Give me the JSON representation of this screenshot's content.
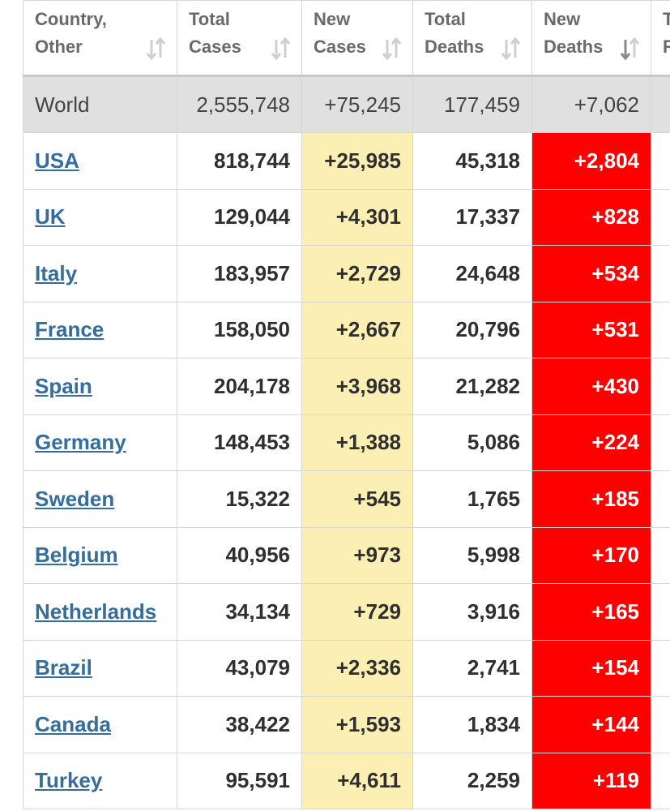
{
  "table": {
    "headers": [
      [
        "Country,",
        "Other"
      ],
      [
        "Total",
        "Cases"
      ],
      [
        "New",
        "Cases"
      ],
      [
        "Total",
        "Deaths"
      ],
      [
        "New",
        "Deaths"
      ],
      [
        "T",
        "R"
      ]
    ],
    "world": [
      "World",
      "2,555,748",
      "+75,245",
      "177,459",
      "+7,062"
    ],
    "rows": [
      [
        "USA",
        "818,744",
        "+25,985",
        "45,318",
        "+2,804"
      ],
      [
        "UK",
        "129,044",
        "+4,301",
        "17,337",
        "+828"
      ],
      [
        "Italy",
        "183,957",
        "+2,729",
        "24,648",
        "+534"
      ],
      [
        "France",
        "158,050",
        "+2,667",
        "20,796",
        "+531"
      ],
      [
        "Spain",
        "204,178",
        "+3,968",
        "21,282",
        "+430"
      ],
      [
        "Germany",
        "148,453",
        "+1,388",
        "5,086",
        "+224"
      ],
      [
        "Sweden",
        "15,322",
        "+545",
        "1,765",
        "+185"
      ],
      [
        "Belgium",
        "40,956",
        "+973",
        "5,998",
        "+170"
      ],
      [
        "Netherlands",
        "34,134",
        "+729",
        "3,916",
        "+165"
      ],
      [
        "Brazil",
        "43,079",
        "+2,336",
        "2,741",
        "+154"
      ],
      [
        "Canada",
        "38,422",
        "+1,593",
        "1,834",
        "+144"
      ],
      [
        "Turkey",
        "95,591",
        "+4,611",
        "2,259",
        "+119"
      ]
    ]
  }
}
